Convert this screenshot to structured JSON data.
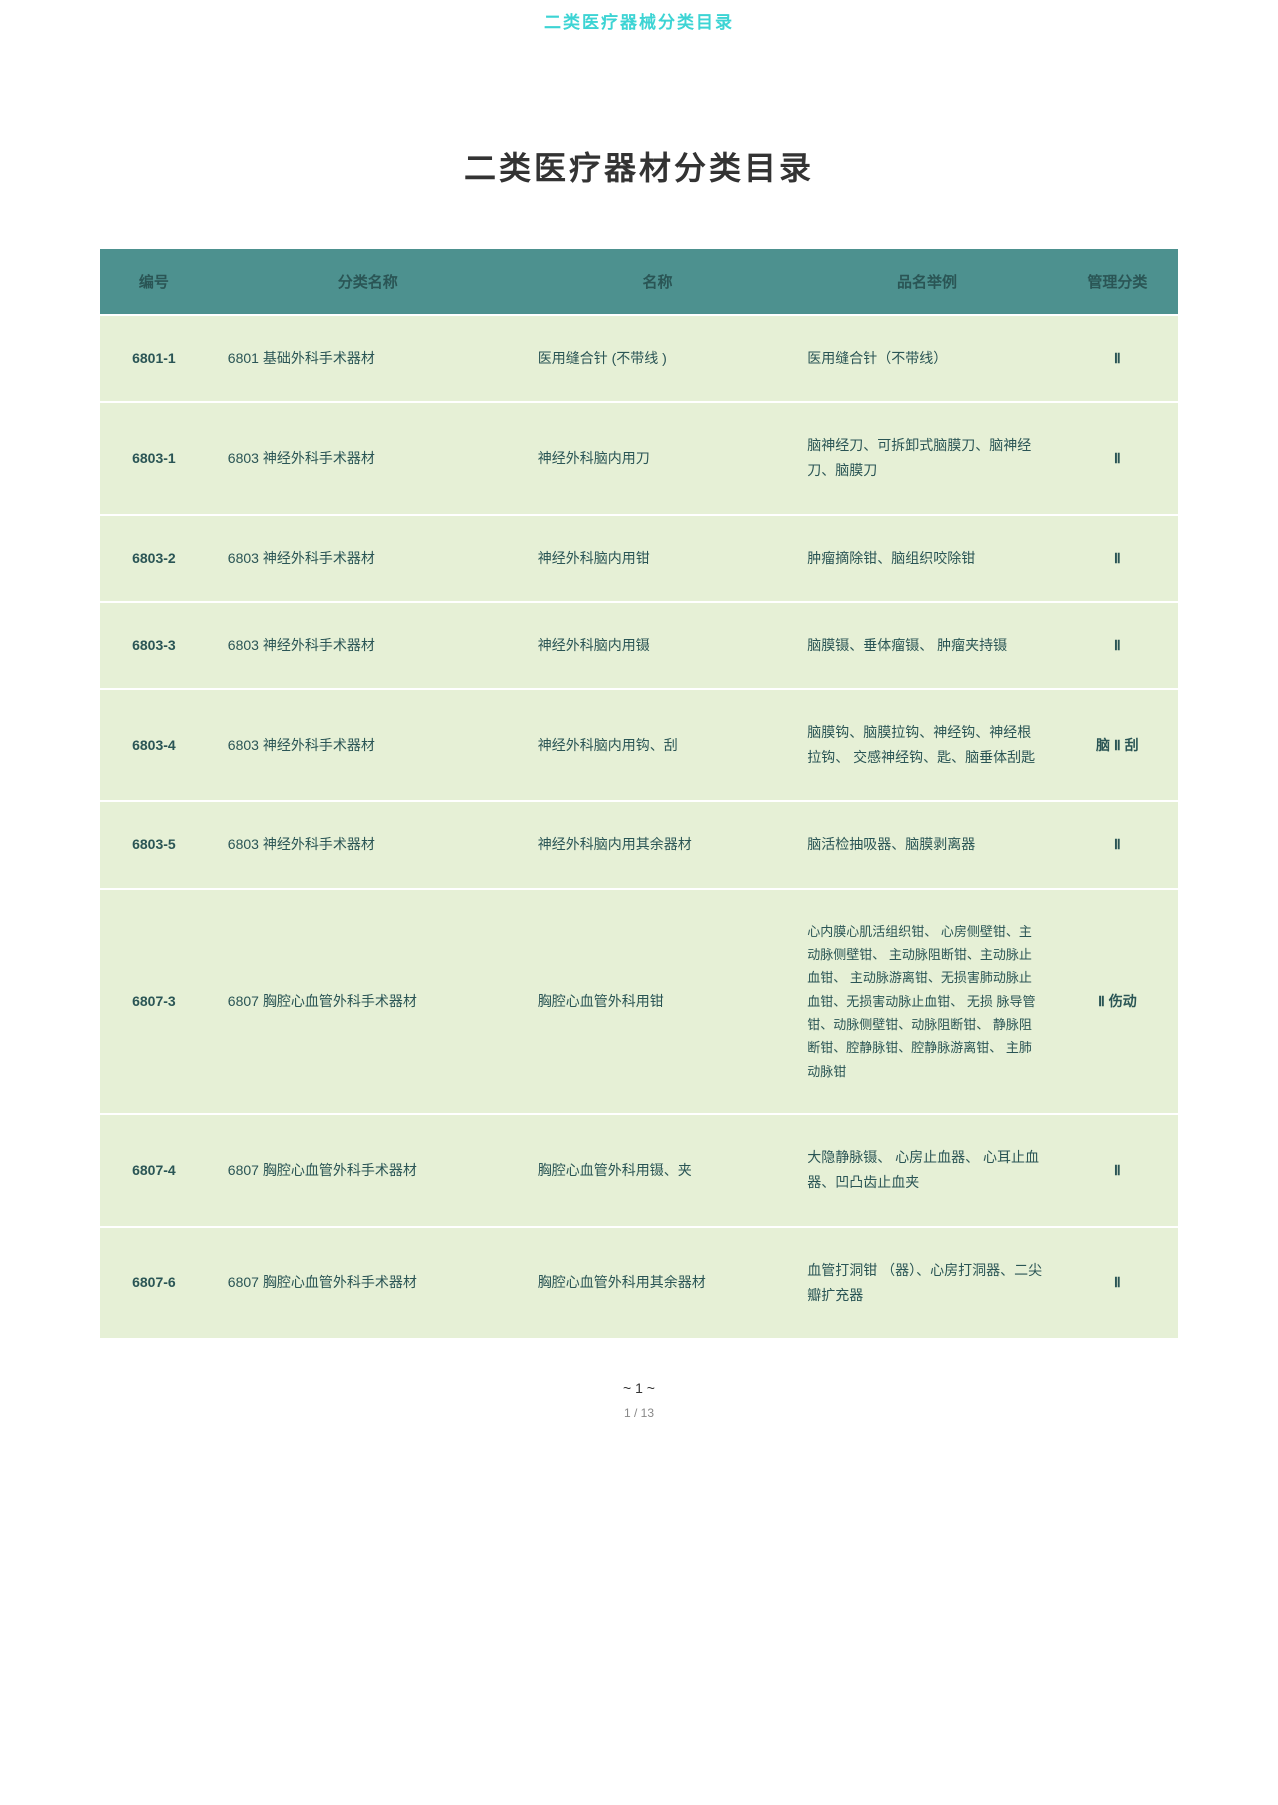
{
  "header": {
    "label": "二类医疗器械分类目录"
  },
  "title": "二类医疗器材分类目录",
  "table": {
    "columns": [
      "编号",
      "分类名称",
      "名称",
      "品名举例",
      "管理分类"
    ],
    "rows": [
      {
        "code": "6801-1",
        "category": "6801 基础外科手术器材",
        "name": "医用缝合针 (不带线 )",
        "examples": "医用缝合针（不带线）",
        "class": "Ⅱ"
      },
      {
        "code": "6803-1",
        "category": "6803 神经外科手术器材",
        "name": "神经外科脑内用刀",
        "examples": "脑神经刀、可拆卸式脑膜刀、脑神经刀、脑膜刀",
        "class": "Ⅱ"
      },
      {
        "code": "6803-2",
        "category": "6803 神经外科手术器材",
        "name": "神经外科脑内用钳",
        "examples": "肿瘤摘除钳、脑组织咬除钳",
        "class": "Ⅱ"
      },
      {
        "code": "6803-3",
        "category": "6803 神经外科手术器材",
        "name": "神经外科脑内用镊",
        "examples": "脑膜镊、垂体瘤镊、 肿瘤夹持镊",
        "class": "Ⅱ"
      },
      {
        "code": "6803-4",
        "category": "6803 神经外科手术器材",
        "name": "神经外科脑内用钩、刮",
        "examples": "脑膜钩、脑膜拉钩、神经钩、神经根拉钩、 交感神经钩、匙、脑垂体刮匙",
        "class": "脑 Ⅱ 刮"
      },
      {
        "code": "6803-5",
        "category": "6803 神经外科手术器材",
        "name": "神经外科脑内用其余器材",
        "examples": "脑活检抽吸器、脑膜剥离器",
        "class": "Ⅱ"
      },
      {
        "code": "6807-3",
        "category": "6807 胸腔心血管外科手术器材",
        "name": "胸腔心血管外科用钳",
        "examples": "心内膜心肌活组织钳、 心房侧壁钳、主动脉侧壁钳、 主动脉阻断钳、主动脉止血钳、 主动脉游离钳、无损害肺动脉止血钳、无损害动脉止血钳、 无损 脉导管钳、动脉侧壁钳、动脉阻断钳、 静脉阻断钳、腔静脉钳、腔静脉游离钳、 主肺动脉钳",
        "class": "Ⅱ 伤动"
      },
      {
        "code": "6807-4",
        "category": "6807 胸腔心血管外科手术器材",
        "name": "胸腔心血管外科用镊、夹",
        "examples": "大隐静脉镊、 心房止血器、 心耳止血器、凹凸齿止血夹",
        "class": "Ⅱ"
      },
      {
        "code": "6807-6",
        "category": "6807 胸腔心血管外科手术器材",
        "name": "胸腔心血管外科用其余器材",
        "examples": "血管打洞钳 （器）、心房打洞器、二尖瓣扩充器",
        "class": "Ⅱ"
      }
    ]
  },
  "footer": {
    "page_tilde": "~ 1 ~",
    "page_frac": "1 / 13"
  }
}
